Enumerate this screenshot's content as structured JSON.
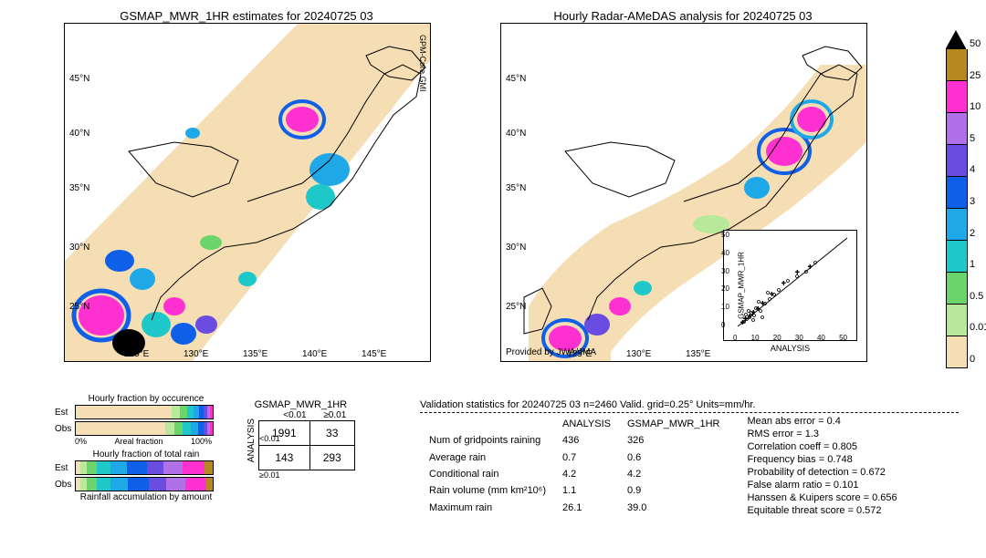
{
  "map1": {
    "title": "GSMAP_MWR_1HR estimates for 20240725 03",
    "satellite_label": "GPM-Core GMI",
    "lon_ticks": [
      "125°E",
      "130°E",
      "135°E",
      "140°E",
      "145°E"
    ],
    "lat_ticks": [
      "25°N",
      "30°N",
      "35°N",
      "40°N",
      "45°N"
    ]
  },
  "map2": {
    "title": "Hourly Radar-AMeDAS analysis for 20240725 03",
    "credit": "Provided by JWA/JMA",
    "lon_ticks": [
      "125°E",
      "130°E",
      "135°E"
    ],
    "lat_ticks": [
      "25°N",
      "30°N",
      "35°N",
      "40°N",
      "45°N"
    ],
    "scatter": {
      "xlabel": "ANALYSIS",
      "ylabel": "GSMAP_MWR_1HR",
      "lim": [
        0,
        50
      ],
      "ticks": [
        0,
        10,
        20,
        30,
        40,
        50
      ]
    }
  },
  "colorbar": {
    "ticks": [
      "0",
      "0.01",
      "0.5",
      "1",
      "2",
      "3",
      "4",
      "5",
      "10",
      "25",
      "50"
    ],
    "colors": [
      "#f5deb3",
      "#b8e89a",
      "#6bd46b",
      "#1fc8c8",
      "#1fa8e8",
      "#0f5fe8",
      "#6a4de0",
      "#b070e8",
      "#ff30d0",
      "#b58820",
      "#000000"
    ]
  },
  "hourly_fraction": {
    "title1": "Hourly fraction by occurence",
    "title2": "Hourly fraction of total rain",
    "title3": "Rainfall accumulation by amount",
    "row_labels": [
      "Est",
      "Obs"
    ],
    "xlabel": "Areal fraction",
    "xend": "100%",
    "xstart": "0%",
    "occurrence_est": [
      {
        "c": "#f5deb3",
        "w": 70
      },
      {
        "c": "#b8e89a",
        "w": 6
      },
      {
        "c": "#6bd46b",
        "w": 5
      },
      {
        "c": "#1fc8c8",
        "w": 5
      },
      {
        "c": "#1fa8e8",
        "w": 4
      },
      {
        "c": "#0f5fe8",
        "w": 3
      },
      {
        "c": "#6a4de0",
        "w": 3
      },
      {
        "c": "#b070e8",
        "w": 2
      },
      {
        "c": "#ff30d0",
        "w": 2
      }
    ],
    "occurrence_obs": [
      {
        "c": "#f5deb3",
        "w": 65
      },
      {
        "c": "#b8e89a",
        "w": 7
      },
      {
        "c": "#6bd46b",
        "w": 6
      },
      {
        "c": "#1fc8c8",
        "w": 6
      },
      {
        "c": "#1fa8e8",
        "w": 5
      },
      {
        "c": "#0f5fe8",
        "w": 4
      },
      {
        "c": "#6a4de0",
        "w": 3
      },
      {
        "c": "#b070e8",
        "w": 2
      },
      {
        "c": "#ff30d0",
        "w": 2
      }
    ],
    "totalrain_est": [
      {
        "c": "#f5deb3",
        "w": 3
      },
      {
        "c": "#b8e89a",
        "w": 5
      },
      {
        "c": "#6bd46b",
        "w": 7
      },
      {
        "c": "#1fc8c8",
        "w": 10
      },
      {
        "c": "#1fa8e8",
        "w": 12
      },
      {
        "c": "#0f5fe8",
        "w": 15
      },
      {
        "c": "#6a4de0",
        "w": 12
      },
      {
        "c": "#b070e8",
        "w": 14
      },
      {
        "c": "#ff30d0",
        "w": 16
      },
      {
        "c": "#b58820",
        "w": 6
      }
    ],
    "totalrain_obs": [
      {
        "c": "#f5deb3",
        "w": 3
      },
      {
        "c": "#b8e89a",
        "w": 5
      },
      {
        "c": "#6bd46b",
        "w": 7
      },
      {
        "c": "#1fc8c8",
        "w": 10
      },
      {
        "c": "#1fa8e8",
        "w": 13
      },
      {
        "c": "#0f5fe8",
        "w": 15
      },
      {
        "c": "#6a4de0",
        "w": 13
      },
      {
        "c": "#b070e8",
        "w": 14
      },
      {
        "c": "#ff30d0",
        "w": 15
      },
      {
        "c": "#b58820",
        "w": 5
      }
    ]
  },
  "contingency": {
    "col_header": "GSMAP_MWR_1HR",
    "row_header": "ANALYSIS",
    "col_labels": [
      "<0.01",
      "≥0.01"
    ],
    "row_labels": [
      "<0.01",
      "≥0.01"
    ],
    "cells": [
      [
        "1991",
        "33"
      ],
      [
        "143",
        "293"
      ]
    ]
  },
  "validation": {
    "header": "Validation statistics for 20240725 03  n=2460 Valid. grid=0.25°  Units=mm/hr.",
    "col_headers": [
      "",
      "ANALYSIS",
      "GSMAP_MWR_1HR"
    ],
    "rows": [
      [
        "Num of gridpoints raining",
        "436",
        "326"
      ],
      [
        "Average rain",
        "0.7",
        "0.6"
      ],
      [
        "Conditional rain",
        "4.2",
        "4.2"
      ],
      [
        "Rain volume (mm km²10⁶)",
        "1.1",
        "0.9"
      ],
      [
        "Maximum rain",
        "26.1",
        "39.0"
      ]
    ],
    "stats": [
      "Mean abs error =    0.4",
      "RMS error =    1.3",
      "Correlation coeff =  0.805",
      "Frequency bias =  0.748",
      "Probability of detection =  0.672",
      "False alarm ratio =  0.101",
      "Hanssen & Kuipers score =  0.656",
      "Equitable threat score =  0.572"
    ]
  }
}
